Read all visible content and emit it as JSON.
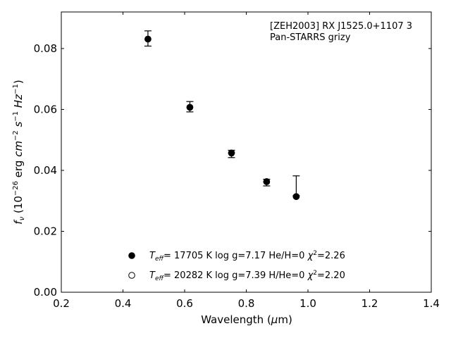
{
  "chart_data": {
    "type": "scatter",
    "title": "",
    "annotation": [
      "[ZEH2003] RX J1525.0+1107 3",
      "Pan-STARRS grizy"
    ],
    "xlabel": {
      "prefix": "Wavelength (",
      "sym": "μ",
      "suffix": "m)"
    },
    "ylabel": {
      "text": "f_ν (10^-26 erg cm^-2 s^-1 Hz^-1)"
    },
    "xlim": [
      0.2,
      1.4
    ],
    "ylim": [
      0.0,
      0.092
    ],
    "xticks": [
      0.2,
      0.4,
      0.6,
      0.8,
      1.0,
      1.2,
      1.4
    ],
    "xtick_labels": [
      "0.2",
      "0.4",
      "0.6",
      "0.8",
      "1.0",
      "1.2",
      "1.4"
    ],
    "yticks": [
      0.0,
      0.02,
      0.04,
      0.06,
      0.08
    ],
    "ytick_labels": [
      "0.00",
      "0.02",
      "0.04",
      "0.06",
      "0.08"
    ],
    "grid": false,
    "legend_position": "bottom-center",
    "series": [
      {
        "name": "T_eff= 17705 K  log g=7.17  He/H=0  χ²=2.26",
        "marker": "filled-circle",
        "color": "#000000",
        "x": [
          0.481,
          0.617,
          0.752,
          0.866,
          0.962
        ],
        "y": [
          0.0831,
          0.0607,
          0.0457,
          0.0363,
          0.0314
        ]
      },
      {
        "name": "T_eff= 20282 K  log g=7.39  H/He=0  χ²=2.20",
        "marker": "open-circle",
        "color": "#000000",
        "x": [
          0.481,
          0.617,
          0.752,
          0.866,
          0.962
        ],
        "y": [
          0.0831,
          0.0607,
          0.0457,
          0.0363,
          0.0314
        ]
      }
    ],
    "observed": {
      "x": [
        0.481,
        0.617,
        0.752,
        0.866,
        0.962
      ],
      "y": [
        0.0833,
        0.0609,
        0.0454,
        0.036,
        0.0317
      ],
      "yerr_low": [
        0.0025,
        0.0017,
        0.0012,
        0.0011,
        0.0
      ],
      "yerr_high": [
        0.0025,
        0.0017,
        0.0012,
        0.0011,
        0.0065
      ]
    },
    "legend": [
      {
        "marker": "filled-circle",
        "teff_value": "= 17705 K  log g=7.17  He/H=0  ",
        "chi": "=2.26"
      },
      {
        "marker": "open-circle",
        "teff_value": "= 20282 K  log g=7.39  H/He=0  ",
        "chi": "=2.20"
      }
    ]
  }
}
